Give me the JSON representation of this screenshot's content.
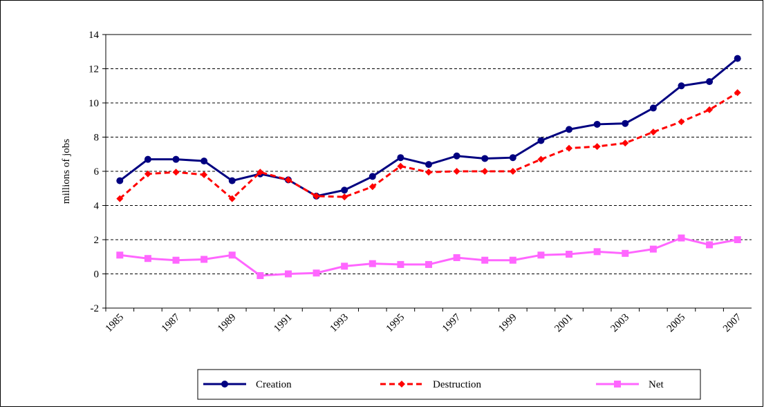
{
  "chart_data": {
    "type": "line",
    "categories": [
      "1985",
      null,
      "1987",
      null,
      "1989",
      null,
      "1991",
      null,
      "1993",
      null,
      "1995",
      null,
      "1997",
      null,
      "1999",
      null,
      "2001",
      null,
      "2003",
      null,
      "2005",
      null,
      "2007"
    ],
    "series": [
      {
        "name": "Creation",
        "color": "#000080",
        "marker": "circle",
        "dashed": false,
        "values": [
          5.45,
          6.7,
          6.7,
          6.6,
          5.45,
          5.85,
          5.5,
          4.55,
          4.9,
          5.7,
          6.8,
          6.4,
          6.9,
          6.75,
          6.8,
          7.8,
          8.45,
          8.75,
          8.8,
          9.7,
          11.0,
          11.25,
          12.6
        ]
      },
      {
        "name": "Destruction",
        "color": "#ff0000",
        "marker": "diamond",
        "dashed": true,
        "values": [
          4.4,
          5.85,
          5.95,
          5.8,
          4.4,
          5.95,
          5.5,
          4.55,
          4.5,
          5.1,
          6.3,
          5.95,
          6.0,
          6.0,
          6.0,
          6.7,
          7.35,
          7.45,
          7.65,
          8.3,
          8.9,
          9.6,
          10.6
        ]
      },
      {
        "name": "Net",
        "color": "#ff66ff",
        "marker": "square",
        "dashed": false,
        "values": [
          1.1,
          0.9,
          0.8,
          0.85,
          1.1,
          -0.1,
          0.0,
          0.05,
          0.45,
          0.6,
          0.55,
          0.55,
          0.95,
          0.8,
          0.8,
          1.1,
          1.15,
          1.3,
          1.2,
          1.45,
          2.1,
          1.7,
          2.0
        ]
      }
    ],
    "y_label": "millions of jobs",
    "ylim": [
      -2,
      14
    ],
    "yticks": [
      -2,
      0,
      2,
      4,
      6,
      8,
      10,
      12,
      14
    ],
    "grid": true,
    "legend": "bottom"
  }
}
